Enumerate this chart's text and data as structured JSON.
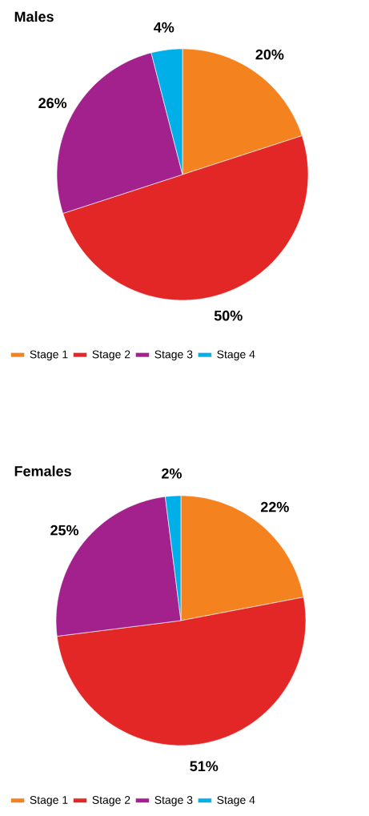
{
  "chart_data": [
    {
      "type": "pie",
      "title": "Males",
      "categories": [
        "Stage 1",
        "Stage 2",
        "Stage 3",
        "Stage 4"
      ],
      "values": [
        20,
        50,
        26,
        4
      ],
      "value_labels": [
        "20%",
        "50%",
        "26%",
        "4%"
      ],
      "colors": [
        "#f4821f",
        "#e32726",
        "#a2218c",
        "#00aee8"
      ],
      "legend": "bottom"
    },
    {
      "type": "pie",
      "title": "Females",
      "categories": [
        "Stage 1",
        "Stage 2",
        "Stage 3",
        "Stage 4"
      ],
      "values": [
        22,
        51,
        25,
        2
      ],
      "value_labels": [
        "22%",
        "51%",
        "25%",
        "2%"
      ],
      "colors": [
        "#f4821f",
        "#e32726",
        "#a2218c",
        "#00aee8"
      ],
      "legend": "bottom"
    }
  ]
}
